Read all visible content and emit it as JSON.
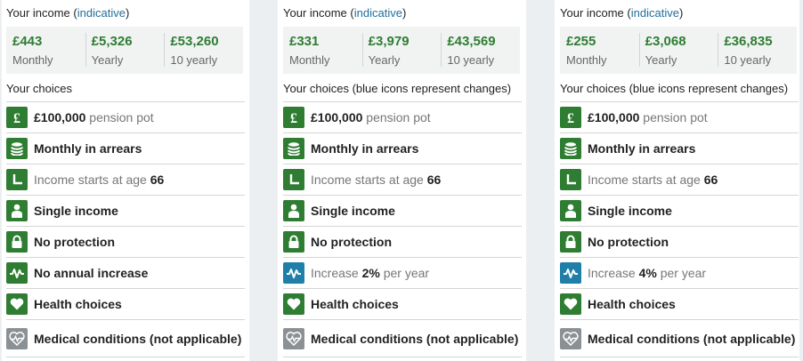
{
  "columns": [
    {
      "income_label": "Your income",
      "link": "indicative",
      "stats": [
        {
          "value": "£443",
          "label": "Monthly"
        },
        {
          "value": "£5,326",
          "label": "Yearly"
        },
        {
          "value": "£53,260",
          "label": "10 yearly"
        }
      ],
      "choices_heading": "Your choices",
      "pot_value": "£100,000",
      "pot_suffix": "pension pot",
      "payment": "Monthly in arrears",
      "start_prefix": "Income starts at age",
      "start_age": "66",
      "single": "Single income",
      "protection": "No protection",
      "increase_prefix": "",
      "increase_value": "",
      "increase_suffix": "",
      "increase_plain": "No annual increase",
      "health": "Health choices",
      "medical": "Medical conditions (not applicable)"
    },
    {
      "income_label": "Your income",
      "link": "indicative",
      "stats": [
        {
          "value": "£331",
          "label": "Monthly"
        },
        {
          "value": "£3,979",
          "label": "Yearly"
        },
        {
          "value": "£43,569",
          "label": "10 yearly"
        }
      ],
      "choices_heading": "Your choices (blue icons represent changes)",
      "pot_value": "£100,000",
      "pot_suffix": "pension pot",
      "payment": "Monthly in arrears",
      "start_prefix": "Income starts at age",
      "start_age": "66",
      "single": "Single income",
      "protection": "No protection",
      "increase_prefix": "Increase",
      "increase_value": "2%",
      "increase_suffix": "per year",
      "increase_plain": "",
      "health": "Health choices",
      "medical": "Medical conditions (not applicable)"
    },
    {
      "income_label": "Your income",
      "link": "indicative",
      "stats": [
        {
          "value": "£255",
          "label": "Monthly"
        },
        {
          "value": "£3,068",
          "label": "Yearly"
        },
        {
          "value": "£36,835",
          "label": "10 yearly"
        }
      ],
      "choices_heading": "Your choices (blue icons represent changes)",
      "pot_value": "£100,000",
      "pot_suffix": "pension pot",
      "payment": "Monthly in arrears",
      "start_prefix": "Income starts at age",
      "start_age": "66",
      "single": "Single income",
      "protection": "No protection",
      "increase_prefix": "Increase",
      "increase_value": "4%",
      "increase_suffix": "per year",
      "increase_plain": "",
      "health": "Health choices",
      "medical": "Medical conditions (not applicable)"
    }
  ],
  "icons": {
    "pot": "pound-icon",
    "payment": "coin-stack-icon",
    "start": "clock-icon",
    "single": "person-icon",
    "protection": "padlock-icon",
    "increase": "pulse-icon",
    "health": "heart-icon",
    "medical": "heartbeat-icon"
  },
  "colors": {
    "accent_green": "#2e7d32",
    "changed_blue": "#1f7fa8",
    "inactive_grey": "#8b9095",
    "link_blue": "#1f6f9e"
  }
}
